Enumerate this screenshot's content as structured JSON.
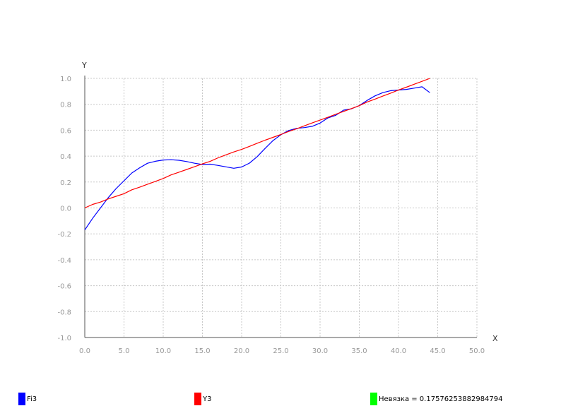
{
  "chart_data": {
    "type": "line",
    "xlabel": "X",
    "ylabel": "Y",
    "xlim": [
      0,
      50
    ],
    "ylim": [
      -1,
      1
    ],
    "xticks": [
      "0.0",
      "5.0",
      "10.0",
      "15.0",
      "20.0",
      "25.0",
      "30.0",
      "35.0",
      "40.0",
      "45.0",
      "50.0"
    ],
    "yticks": [
      "-1.0",
      "-0.8",
      "-0.6",
      "-0.4",
      "-0.2",
      "0.0",
      "0.2",
      "0.4",
      "0.6",
      "0.8",
      "1.0"
    ],
    "grid": true,
    "series": [
      {
        "name": "Fi3",
        "color": "#0000ff",
        "x": [
          0,
          1,
          2,
          3,
          4,
          5,
          6,
          7,
          8,
          9,
          10,
          11,
          12,
          13,
          14,
          15,
          16,
          17,
          18,
          19,
          20,
          21,
          22,
          23,
          24,
          25,
          26,
          27,
          28,
          29,
          30,
          31,
          32,
          33,
          34,
          35,
          36,
          37,
          38,
          39,
          40,
          41,
          42,
          43,
          44
        ],
        "y": [
          -0.17,
          -0.08,
          0.0,
          0.08,
          0.15,
          0.21,
          0.27,
          0.31,
          0.345,
          0.36,
          0.37,
          0.372,
          0.368,
          0.358,
          0.345,
          0.335,
          0.338,
          0.328,
          0.317,
          0.306,
          0.316,
          0.346,
          0.397,
          0.46,
          0.52,
          0.565,
          0.598,
          0.614,
          0.62,
          0.63,
          0.655,
          0.695,
          0.715,
          0.755,
          0.765,
          0.79,
          0.83,
          0.865,
          0.89,
          0.905,
          0.91,
          0.915,
          0.925,
          0.935,
          0.89
        ]
      },
      {
        "name": "Y3",
        "color": "#ff0000",
        "x": [
          0,
          1,
          2,
          3,
          4,
          5,
          6,
          7,
          8,
          9,
          10,
          11,
          12,
          13,
          14,
          15,
          16,
          17,
          18,
          19,
          20,
          21,
          22,
          23,
          24,
          25,
          26,
          27,
          28,
          29,
          30,
          31,
          32,
          33,
          34,
          35,
          36,
          37,
          38,
          39,
          40,
          41,
          42,
          43,
          44
        ],
        "y": [
          0.0,
          0.027,
          0.045,
          0.07,
          0.09,
          0.11,
          0.14,
          0.16,
          0.183,
          0.205,
          0.227,
          0.255,
          0.276,
          0.297,
          0.318,
          0.34,
          0.36,
          0.387,
          0.41,
          0.432,
          0.452,
          0.475,
          0.5,
          0.523,
          0.545,
          0.567,
          0.59,
          0.611,
          0.634,
          0.656,
          0.678,
          0.7,
          0.723,
          0.745,
          0.767,
          0.789,
          0.818,
          0.84,
          0.863,
          0.886,
          0.91,
          0.932,
          0.955,
          0.977,
          1.0
        ]
      }
    ]
  },
  "legend": [
    {
      "label": "Fi3",
      "color": "#0000ff"
    },
    {
      "label": "Y3",
      "color": "#ff0000"
    },
    {
      "label": "Невязка = 0.17576253882984794",
      "color": "#00ff00"
    }
  ]
}
